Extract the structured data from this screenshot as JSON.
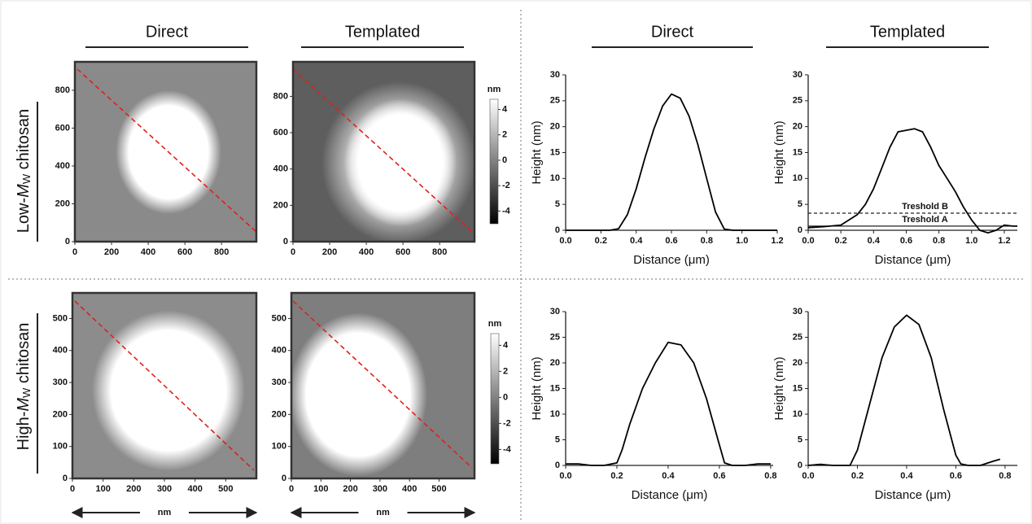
{
  "headers": [
    "Direct",
    "Templated",
    "Direct",
    "Templated"
  ],
  "row_labels": [
    {
      "prefix": "Low-",
      "symbol": "M",
      "subscript": "W",
      "suffix": " chitosan"
    },
    {
      "prefix": "High-",
      "symbol": "M",
      "subscript": "W",
      "suffix": " chitosan"
    }
  ],
  "chart_data": [
    {
      "type": "image",
      "xlim": [
        0,
        990
      ],
      "ylim": [
        0,
        950
      ],
      "xticks": [
        0,
        200,
        400,
        600,
        800
      ],
      "yticks": [
        0,
        200,
        400,
        600,
        800
      ]
    },
    {
      "type": "image",
      "xlim": [
        0,
        990
      ],
      "ylim": [
        0,
        990
      ],
      "xticks": [
        0,
        200,
        400,
        600,
        800
      ],
      "yticks": [
        0,
        200,
        400,
        600,
        800
      ],
      "colorbar": {
        "label": "nm",
        "clim": [
          -5,
          4.8
        ],
        "ticks": [
          4,
          2,
          0,
          -2,
          -4
        ]
      }
    },
    {
      "type": "line",
      "xlabel": "Distance (μm)",
      "ylabel": "Height (nm)",
      "xlim": [
        0,
        1.2
      ],
      "ylim": [
        0,
        30
      ],
      "xticks": [
        {
          "value": 0,
          "label": "0.0"
        },
        0.2,
        0.4,
        0.6,
        0.8,
        {
          "value": 1,
          "label": "1.0"
        },
        1.2
      ],
      "yticks": [
        0,
        5,
        10,
        15,
        20,
        25,
        30
      ],
      "color": "#000000",
      "x": [
        0,
        0.1,
        0.2,
        0.25,
        0.3,
        0.35,
        0.4,
        0.45,
        0.5,
        0.55,
        0.6,
        0.65,
        0.7,
        0.75,
        0.8,
        0.85,
        0.9,
        0.95,
        1.0,
        1.1,
        1.2
      ],
      "values": [
        0,
        0,
        0,
        0,
        0.3,
        3,
        8,
        14,
        19.5,
        24,
        26.3,
        25.5,
        22,
        16.5,
        10,
        3.5,
        0.2,
        0,
        0,
        0,
        0
      ]
    },
    {
      "type": "line",
      "xlabel": "Distance (μm)",
      "ylabel": "Height (nm)",
      "xlim": [
        0,
        1.28
      ],
      "ylim": [
        0,
        30
      ],
      "xticks": [
        {
          "value": 0,
          "label": "0.0"
        },
        0.2,
        0.4,
        0.6,
        0.8,
        {
          "value": 1,
          "label": "1.0"
        },
        1.2
      ],
      "yticks": [
        0,
        5,
        10,
        15,
        20,
        25,
        30
      ],
      "color": "#000000",
      "x": [
        0,
        0.1,
        0.2,
        0.25,
        0.3,
        0.35,
        0.4,
        0.45,
        0.5,
        0.55,
        0.6,
        0.65,
        0.7,
        0.75,
        0.8,
        0.85,
        0.9,
        0.95,
        1.0,
        1.05,
        1.1,
        1.15,
        1.2,
        1.25,
        1.28
      ],
      "values": [
        0.5,
        0.7,
        1,
        2,
        3,
        5,
        8,
        12,
        16,
        19,
        19.3,
        19.6,
        19,
        16,
        12.5,
        10,
        7.5,
        4.5,
        2,
        0,
        -0.5,
        0,
        1,
        0.8,
        0.8
      ],
      "hlines": [
        {
          "label": "Treshold B",
          "value": 3.3,
          "style": "dashed"
        },
        {
          "label": "Treshold A",
          "value": 0.8,
          "style": "solid"
        }
      ]
    },
    {
      "type": "image",
      "xlabel": "nm",
      "xlim": [
        0,
        600
      ],
      "ylim": [
        0,
        580
      ],
      "xticks": [
        0,
        100,
        200,
        300,
        400,
        500
      ],
      "yticks": [
        0,
        100,
        200,
        300,
        400,
        500
      ]
    },
    {
      "type": "image",
      "xlabel": "nm",
      "xlim": [
        0,
        620
      ],
      "ylim": [
        0,
        580
      ],
      "xticks": [
        0,
        100,
        200,
        300,
        400,
        500
      ],
      "yticks": [
        0,
        100,
        200,
        300,
        400,
        500
      ],
      "colorbar": {
        "label": "nm",
        "clim": [
          -5.1,
          4.9
        ],
        "ticks": [
          4,
          2,
          0,
          -2,
          -4
        ]
      }
    },
    {
      "type": "line",
      "xlabel": "Distance (μm)",
      "ylabel": "Height (nm)",
      "xlim": [
        0,
        0.81
      ],
      "ylim": [
        0,
        30
      ],
      "xticks": [
        {
          "value": 0,
          "label": "0.0"
        },
        0.2,
        0.4,
        0.6,
        0.8
      ],
      "yticks": [
        0,
        5,
        10,
        15,
        20,
        25,
        30
      ],
      "color": "#000000",
      "x": [
        0,
        0.05,
        0.1,
        0.15,
        0.2,
        0.22,
        0.25,
        0.3,
        0.35,
        0.4,
        0.45,
        0.5,
        0.55,
        0.6,
        0.62,
        0.65,
        0.7,
        0.75,
        0.8
      ],
      "values": [
        0.3,
        0.3,
        0,
        0,
        0.5,
        3,
        8,
        15,
        20,
        24,
        23.5,
        20,
        13,
        4,
        0.5,
        0,
        0,
        0.3,
        0.3
      ]
    },
    {
      "type": "line",
      "xlabel": "Distance (μm)",
      "ylabel": "Height (nm)",
      "xlim": [
        0,
        0.85
      ],
      "ylim": [
        0,
        30
      ],
      "xticks": [
        {
          "value": 0,
          "label": "0.0"
        },
        0.2,
        0.4,
        0.6,
        0.8
      ],
      "yticks": [
        0,
        5,
        10,
        15,
        20,
        25,
        30
      ],
      "color": "#000000",
      "x": [
        0,
        0.05,
        0.1,
        0.15,
        0.17,
        0.2,
        0.25,
        0.3,
        0.35,
        0.4,
        0.45,
        0.5,
        0.55,
        0.6,
        0.62,
        0.65,
        0.7,
        0.75,
        0.78
      ],
      "values": [
        0,
        0.2,
        0,
        0,
        0,
        3,
        12,
        21,
        27,
        29.3,
        27.5,
        21,
        11,
        2,
        0.3,
        0,
        0,
        0.8,
        1.2
      ]
    }
  ]
}
